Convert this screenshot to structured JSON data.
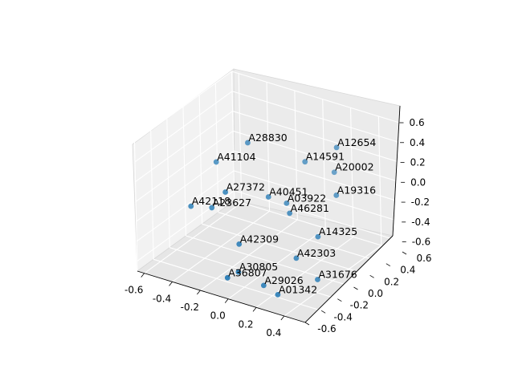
{
  "chart_data": {
    "type": "scatter",
    "projection": "3d",
    "title": "",
    "xlabel": "",
    "ylabel": "",
    "zlabel": "",
    "grid": true,
    "marker_color": "#1f77b4",
    "xlim": [
      -0.65,
      0.55
    ],
    "ylim": [
      -0.6,
      0.6
    ],
    "zlim": [
      -0.7,
      0.6
    ],
    "xticks": [
      "-0.6",
      "-0.4",
      "-0.2",
      "0.0",
      "0.2",
      "0.4"
    ],
    "yticks": [
      "-0.6",
      "-0.4",
      "-0.2",
      "0.0",
      "0.2",
      "0.4",
      "0.6"
    ],
    "zticks": [
      "-0.6",
      "-0.4",
      "-0.2",
      "0.0",
      "0.2",
      "0.4",
      "0.6"
    ],
    "points": [
      {
        "label": "A12654",
        "x": 0.3,
        "y": 0.25,
        "z": 0.45
      },
      {
        "label": "A28830",
        "x": -0.25,
        "y": 0.1,
        "z": 0.35
      },
      {
        "label": "A14591",
        "x": 0.1,
        "y": 0.2,
        "z": 0.25
      },
      {
        "label": "A20002",
        "x": 0.25,
        "y": 0.3,
        "z": 0.15
      },
      {
        "label": "A19316",
        "x": 0.35,
        "y": 0.15,
        "z": 0.05
      },
      {
        "label": "A41104",
        "x": -0.45,
        "y": 0.05,
        "z": 0.1
      },
      {
        "label": "A03922",
        "x": 0.05,
        "y": 0.05,
        "z": -0.1
      },
      {
        "label": "A14325",
        "x": 0.3,
        "y": 0.0,
        "z": -0.3
      },
      {
        "label": "A27372",
        "x": -0.3,
        "y": -0.1,
        "z": -0.05
      },
      {
        "label": "A40451",
        "x": -0.05,
        "y": 0.0,
        "z": -0.05
      },
      {
        "label": "A46281",
        "x": 0.1,
        "y": 0.0,
        "z": -0.15
      },
      {
        "label": "A23627",
        "x": -0.4,
        "y": -0.1,
        "z": -0.25
      },
      {
        "label": "A42303",
        "x": 0.2,
        "y": -0.1,
        "z": -0.5
      },
      {
        "label": "A42118",
        "x": -0.55,
        "y": -0.1,
        "z": -0.3
      },
      {
        "label": "A42309",
        "x": -0.15,
        "y": -0.2,
        "z": -0.45
      },
      {
        "label": "A31676",
        "x": 0.35,
        "y": -0.1,
        "z": -0.65
      },
      {
        "label": "A30805",
        "x": -0.1,
        "y": -0.3,
        "z": -0.65
      },
      {
        "label": "A36807",
        "x": -0.15,
        "y": -0.35,
        "z": -0.7
      },
      {
        "label": "A29026",
        "x": 0.05,
        "y": -0.25,
        "z": -0.75
      },
      {
        "label": "A01342",
        "x": 0.15,
        "y": -0.25,
        "z": -0.8
      }
    ]
  }
}
